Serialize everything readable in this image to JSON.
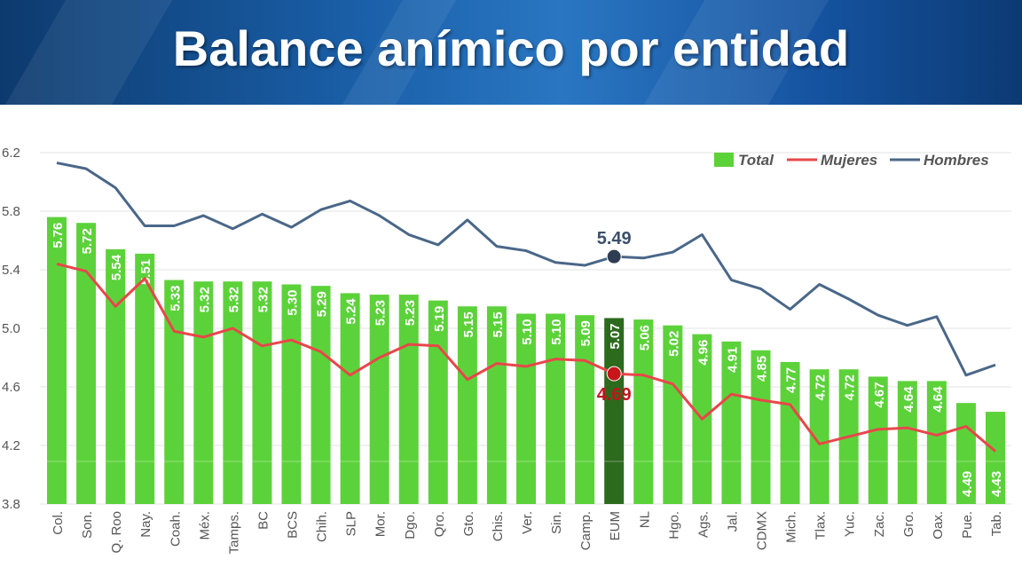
{
  "header": {
    "title": "Balance anímico por entidad"
  },
  "chart_data": {
    "type": "bar",
    "title": "",
    "xlabel": "",
    "ylabel": "",
    "ylim": [
      3.8,
      6.2
    ],
    "yticks": [
      "3.8",
      "4.2",
      "4.6",
      "5.0",
      "5.4",
      "5.8",
      "6.2"
    ],
    "grid": true,
    "legend_position": "top-right",
    "categories": [
      "Col.",
      "Son.",
      "Q. Roo",
      "Nay.",
      "Coah.",
      "Méx.",
      "Tamps.",
      "BC",
      "BCS",
      "Chih.",
      "SLP",
      "Mor.",
      "Dgo.",
      "Qro.",
      "Gto.",
      "Chis.",
      "Ver.",
      "Sin.",
      "Camp.",
      "EUM",
      "NL",
      "Hgo.",
      "Ags.",
      "Jal.",
      "CDMX",
      "Mich.",
      "Tlax.",
      "Yuc.",
      "Zac.",
      "Gro.",
      "Oax.",
      "Pue.",
      "Tab."
    ],
    "highlight_category": "EUM",
    "series": [
      {
        "name": "Total",
        "type": "bar",
        "color": "#5cd23a",
        "highlight_color": "#2c6a1e",
        "values": [
          5.76,
          5.72,
          5.54,
          5.51,
          5.33,
          5.32,
          5.32,
          5.32,
          5.3,
          5.29,
          5.24,
          5.23,
          5.23,
          5.19,
          5.15,
          5.15,
          5.1,
          5.1,
          5.09,
          5.07,
          5.06,
          5.02,
          4.96,
          4.91,
          4.85,
          4.77,
          4.72,
          4.72,
          4.67,
          4.64,
          4.64,
          4.49,
          4.43
        ],
        "labels": [
          "5.76",
          "5.72",
          "5.54",
          "5.51",
          "5.33",
          "5.32",
          "5.32",
          "5.32",
          "5.30",
          "5.29",
          "5.24",
          "5.23",
          "5.23",
          "5.19",
          "5.15",
          "5.15",
          "5.10",
          "5.10",
          "5.09",
          "5.07",
          "5.06",
          "5.02",
          "4.96",
          "4.91",
          "4.85",
          "4.77",
          "4.72",
          "4.72",
          "4.67",
          "4.64",
          "4.64",
          "4.49",
          "4.43"
        ]
      },
      {
        "name": "Mujeres",
        "type": "line",
        "color": "#e8464a",
        "values": [
          5.44,
          5.39,
          5.15,
          5.34,
          4.98,
          4.94,
          5.0,
          4.88,
          4.92,
          4.84,
          4.68,
          4.8,
          4.89,
          4.88,
          4.65,
          4.76,
          4.74,
          4.79,
          4.78,
          4.69,
          4.68,
          4.62,
          4.38,
          4.55,
          4.51,
          4.48,
          4.21,
          4.26,
          4.31,
          4.32,
          4.27,
          4.33,
          4.16
        ],
        "annotation": {
          "category": "EUM",
          "label": "4.69",
          "color": "#c0161b"
        }
      },
      {
        "name": "Hombres",
        "type": "line",
        "color": "#4a6788",
        "values": [
          6.13,
          6.09,
          5.96,
          5.7,
          5.7,
          5.77,
          5.68,
          5.78,
          5.69,
          5.81,
          5.87,
          5.77,
          5.64,
          5.57,
          5.74,
          5.56,
          5.53,
          5.45,
          5.43,
          5.49,
          5.48,
          5.52,
          5.64,
          5.33,
          5.27,
          5.13,
          5.3,
          5.2,
          5.09,
          5.02,
          5.08,
          4.68,
          4.75
        ],
        "annotation": {
          "category": "EUM",
          "label": "5.49",
          "color": "#3b4f6b"
        }
      }
    ]
  }
}
